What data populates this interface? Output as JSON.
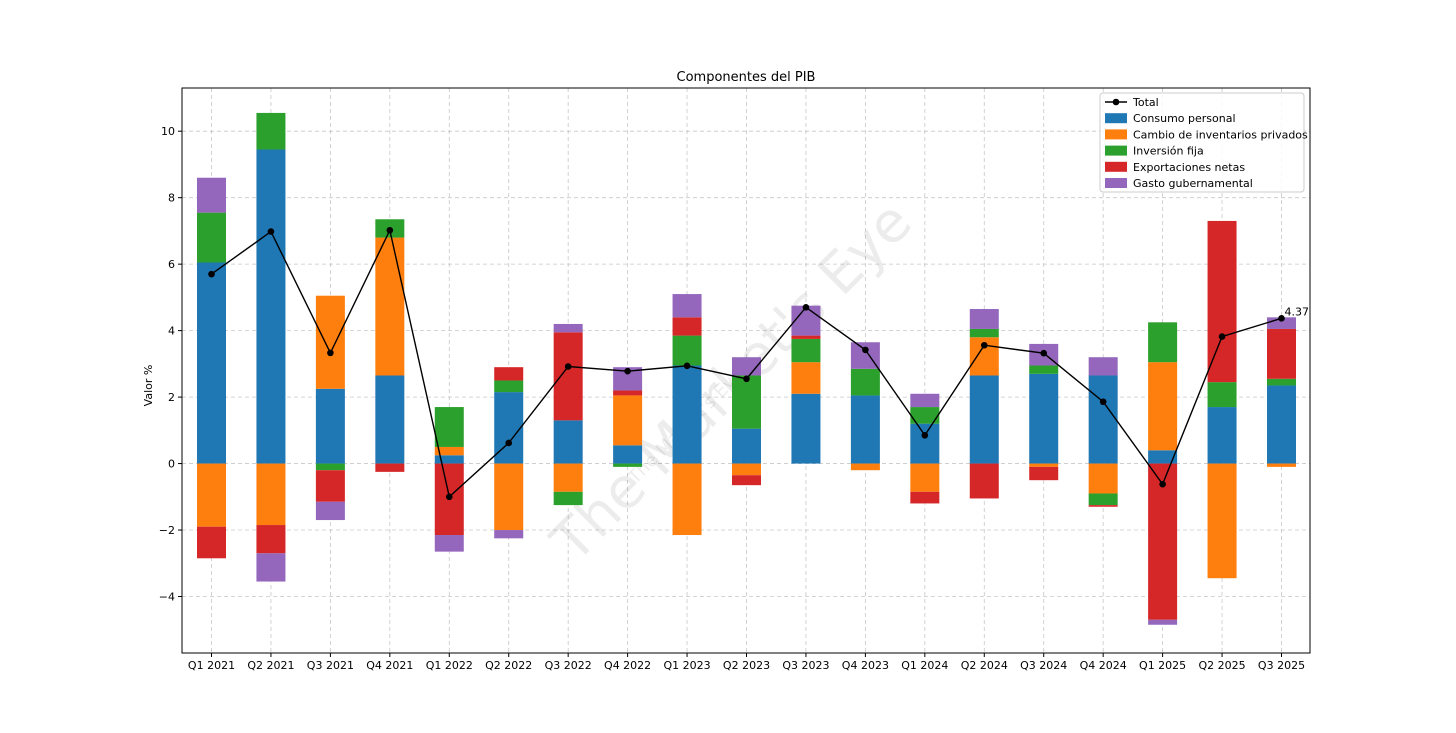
{
  "chart_data": {
    "type": "bar",
    "subtype": "stacked-bar-with-line",
    "title": "Componentes del PIB",
    "xlabel": "",
    "ylabel": "Valor %",
    "ylim": [
      -5.7,
      11.3
    ],
    "yticks": [
      -4,
      -2,
      0,
      2,
      4,
      6,
      8,
      10
    ],
    "ytick_labels": [
      "−4",
      "−2",
      "0",
      "2",
      "4",
      "6",
      "8",
      "10"
    ],
    "grid": true,
    "legend_position": "top-right",
    "categories": [
      "Q1 2021",
      "Q2 2021",
      "Q3 2021",
      "Q4 2021",
      "Q1 2022",
      "Q2 2022",
      "Q3 2022",
      "Q4 2022",
      "Q1 2023",
      "Q2 2023",
      "Q3 2023",
      "Q4 2023",
      "Q1 2024",
      "Q2 2024",
      "Q3 2024",
      "Q4 2024",
      "Q1 2025",
      "Q2 2025",
      "Q3 2025"
    ],
    "series": [
      {
        "name": "Consumo personal",
        "color": "#1f77b4",
        "values": [
          6.05,
          9.45,
          2.25,
          2.65,
          0.25,
          2.15,
          1.3,
          0.55,
          2.95,
          1.05,
          2.1,
          2.05,
          1.2,
          2.65,
          2.7,
          2.65,
          0.4,
          1.7,
          2.35
        ]
      },
      {
        "name": "Cambio de inventarios privados",
        "color": "#ff7f0e",
        "values": [
          -1.9,
          -1.85,
          2.8,
          4.15,
          0.25,
          -2.0,
          -0.85,
          1.5,
          -2.15,
          -0.35,
          0.95,
          -0.2,
          -0.85,
          1.15,
          -0.1,
          -0.9,
          2.65,
          -3.45,
          -0.1
        ]
      },
      {
        "name": "Inversión fija",
        "color": "#2ca02c",
        "values": [
          1.5,
          1.1,
          -0.2,
          0.55,
          1.2,
          0.35,
          -0.4,
          -0.1,
          0.9,
          1.6,
          0.7,
          0.8,
          0.5,
          0.25,
          0.25,
          -0.35,
          1.2,
          0.75,
          0.2
        ]
      },
      {
        "name": "Exportaciones netas",
        "color": "#d62728",
        "values": [
          -0.95,
          -0.85,
          -0.95,
          -0.25,
          -2.15,
          0.4,
          2.65,
          0.15,
          0.55,
          -0.3,
          0.1,
          0.0,
          -0.35,
          -1.05,
          -0.4,
          -0.05,
          -4.7,
          4.85,
          1.5
        ]
      },
      {
        "name": "Gasto gubernamental",
        "color": "#9467bd",
        "values": [
          1.05,
          -0.85,
          -0.55,
          0.0,
          -0.5,
          -0.25,
          0.25,
          0.7,
          0.7,
          0.55,
          0.9,
          0.8,
          0.4,
          0.6,
          0.65,
          0.55,
          -0.15,
          0.0,
          0.35
        ]
      }
    ],
    "line": {
      "name": "Total",
      "color": "#000000",
      "values": [
        5.7,
        6.98,
        3.33,
        7.02,
        -1.0,
        0.62,
        2.92,
        2.78,
        2.94,
        2.55,
        4.7,
        3.42,
        0.85,
        3.56,
        3.32,
        1.86,
        -0.62,
        3.82,
        4.37
      ]
    },
    "annotations": [
      {
        "category": "Q3 2025",
        "text": "4.37"
      }
    ]
  },
  "watermark": {
    "text": "The Market's Eye",
    "subtext": "The Market's Eye"
  }
}
